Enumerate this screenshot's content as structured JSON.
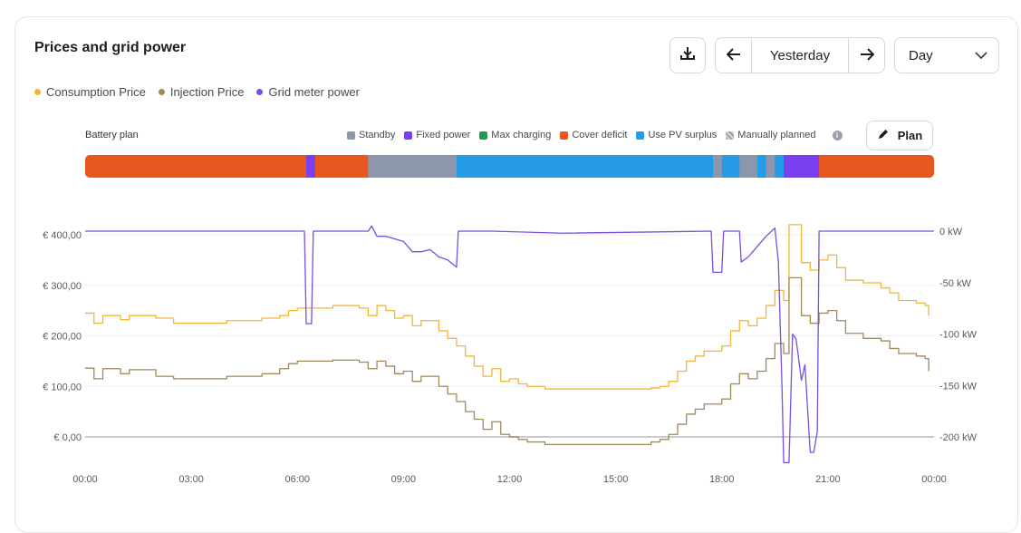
{
  "header": {
    "title": "Prices and grid power",
    "download_icon": "download-icon",
    "prev_icon": "arrow-left-icon",
    "next_icon": "arrow-right-icon",
    "period_label": "Yesterday",
    "range_select": "Day",
    "chevron_icon": "chevron-down-icon"
  },
  "legend": [
    {
      "label": "Consumption Price",
      "color": "#f2b636"
    },
    {
      "label": "Injection Price",
      "color": "#a1895a"
    },
    {
      "label": "Grid meter power",
      "color": "#7b4fe0"
    }
  ],
  "battery_plan": {
    "title": "Battery plan",
    "legend": [
      {
        "label": "Standby",
        "color": "#8d97ab"
      },
      {
        "label": "Fixed power",
        "color": "#7b3ff2"
      },
      {
        "label": "Max charging",
        "color": "#1e9e4a"
      },
      {
        "label": "Cover deficit",
        "color": "#e8581e"
      },
      {
        "label": "Use PV surplus",
        "color": "#269be6"
      },
      {
        "label": "Manually planned",
        "color": "hatch"
      }
    ],
    "info_icon": "info-icon",
    "plan_button": "Plan",
    "plan_icon": "pencil-icon",
    "segments": [
      {
        "start": 0.0,
        "end": 6.25,
        "mode": "Cover deficit"
      },
      {
        "start": 6.25,
        "end": 6.5,
        "mode": "Fixed power"
      },
      {
        "start": 6.5,
        "end": 8.0,
        "mode": "Cover deficit"
      },
      {
        "start": 8.0,
        "end": 10.5,
        "mode": "Standby"
      },
      {
        "start": 10.5,
        "end": 17.75,
        "mode": "Use PV surplus"
      },
      {
        "start": 17.75,
        "end": 18.0,
        "mode": "Standby"
      },
      {
        "start": 18.0,
        "end": 18.5,
        "mode": "Use PV surplus"
      },
      {
        "start": 18.5,
        "end": 19.0,
        "mode": "Standby"
      },
      {
        "start": 19.0,
        "end": 19.25,
        "mode": "Use PV surplus"
      },
      {
        "start": 19.25,
        "end": 19.5,
        "mode": "Standby"
      },
      {
        "start": 19.5,
        "end": 19.75,
        "mode": "Use PV surplus"
      },
      {
        "start": 19.75,
        "end": 20.75,
        "mode": "Fixed power"
      },
      {
        "start": 20.75,
        "end": 24.0,
        "mode": "Cover deficit"
      }
    ]
  },
  "chart_data": {
    "type": "line",
    "x_ticks": [
      "00:00",
      "03:00",
      "06:00",
      "09:00",
      "12:00",
      "15:00",
      "18:00",
      "21:00",
      "00:00"
    ],
    "y_left_ticks": [
      "€ 0,00",
      "€ 100,00",
      "€ 200,00",
      "€ 300,00",
      "€ 400,00"
    ],
    "y_right_ticks": [
      "0 kW",
      "-50 kW",
      "-100 kW",
      "-150 kW",
      "-200 kW"
    ],
    "y_left_range": [
      0,
      400
    ],
    "y_right_range": [
      -200,
      0
    ],
    "grid": true,
    "series": [
      {
        "name": "Consumption Price",
        "color": "#f2b636",
        "axis": "left",
        "points": [
          [
            0,
            245
          ],
          [
            0.25,
            225
          ],
          [
            0.5,
            240
          ],
          [
            1.0,
            232
          ],
          [
            1.25,
            240
          ],
          [
            2.0,
            235
          ],
          [
            2.5,
            225
          ],
          [
            4.0,
            230
          ],
          [
            5.0,
            235
          ],
          [
            5.5,
            240
          ],
          [
            5.75,
            250
          ],
          [
            6.0,
            255
          ],
          [
            7.0,
            260
          ],
          [
            7.75,
            255
          ],
          [
            8.0,
            240
          ],
          [
            8.25,
            260
          ],
          [
            8.5,
            250
          ],
          [
            8.75,
            235
          ],
          [
            9.0,
            240
          ],
          [
            9.25,
            220
          ],
          [
            9.5,
            230
          ],
          [
            10.0,
            210
          ],
          [
            10.25,
            195
          ],
          [
            10.5,
            180
          ],
          [
            10.75,
            160
          ],
          [
            11.0,
            140
          ],
          [
            11.25,
            120
          ],
          [
            11.5,
            135
          ],
          [
            11.75,
            110
          ],
          [
            12.0,
            115
          ],
          [
            12.25,
            105
          ],
          [
            12.5,
            100
          ],
          [
            13.0,
            95
          ],
          [
            15.0,
            95
          ],
          [
            16.0,
            97
          ],
          [
            16.25,
            100
          ],
          [
            16.5,
            110
          ],
          [
            16.75,
            130
          ],
          [
            17.0,
            150
          ],
          [
            17.25,
            160
          ],
          [
            17.5,
            170
          ],
          [
            18.0,
            180
          ],
          [
            18.25,
            210
          ],
          [
            18.5,
            230
          ],
          [
            18.75,
            220
          ],
          [
            19.0,
            235
          ],
          [
            19.25,
            260
          ],
          [
            19.5,
            290
          ],
          [
            19.75,
            270
          ],
          [
            19.9,
            420
          ],
          [
            20.0,
            420
          ],
          [
            20.25,
            345
          ],
          [
            20.5,
            330
          ],
          [
            20.75,
            350
          ],
          [
            21.0,
            360
          ],
          [
            21.25,
            335
          ],
          [
            21.5,
            310
          ],
          [
            22.0,
            305
          ],
          [
            22.5,
            295
          ],
          [
            22.75,
            285
          ],
          [
            23.0,
            270
          ],
          [
            23.5,
            265
          ],
          [
            23.75,
            260
          ],
          [
            23.85,
            240
          ]
        ]
      },
      {
        "name": "Injection Price",
        "color": "#a1895a",
        "axis": "left",
        "points": [
          [
            0,
            136
          ],
          [
            0.25,
            115
          ],
          [
            0.5,
            135
          ],
          [
            1.0,
            125
          ],
          [
            1.25,
            133
          ],
          [
            2.0,
            120
          ],
          [
            2.5,
            115
          ],
          [
            4.0,
            120
          ],
          [
            5.0,
            125
          ],
          [
            5.5,
            135
          ],
          [
            5.75,
            145
          ],
          [
            6.0,
            150
          ],
          [
            7.0,
            152
          ],
          [
            7.75,
            148
          ],
          [
            8.0,
            135
          ],
          [
            8.25,
            150
          ],
          [
            8.5,
            140
          ],
          [
            8.75,
            125
          ],
          [
            9.0,
            130
          ],
          [
            9.25,
            110
          ],
          [
            9.5,
            120
          ],
          [
            10.0,
            100
          ],
          [
            10.25,
            85
          ],
          [
            10.5,
            70
          ],
          [
            10.75,
            50
          ],
          [
            11.0,
            35
          ],
          [
            11.25,
            15
          ],
          [
            11.5,
            30
          ],
          [
            11.75,
            5
          ],
          [
            12.0,
            0
          ],
          [
            12.25,
            -5
          ],
          [
            12.5,
            -10
          ],
          [
            13.0,
            -15
          ],
          [
            15.0,
            -15
          ],
          [
            16.0,
            -10
          ],
          [
            16.25,
            -5
          ],
          [
            16.5,
            5
          ],
          [
            16.75,
            25
          ],
          [
            17.0,
            45
          ],
          [
            17.25,
            55
          ],
          [
            17.5,
            65
          ],
          [
            18.0,
            75
          ],
          [
            18.25,
            105
          ],
          [
            18.5,
            125
          ],
          [
            18.75,
            115
          ],
          [
            19.0,
            130
          ],
          [
            19.25,
            155
          ],
          [
            19.5,
            185
          ],
          [
            19.75,
            165
          ],
          [
            19.9,
            315
          ],
          [
            20.0,
            315
          ],
          [
            20.25,
            240
          ],
          [
            20.5,
            225
          ],
          [
            20.75,
            245
          ],
          [
            21.0,
            250
          ],
          [
            21.25,
            230
          ],
          [
            21.5,
            205
          ],
          [
            22.0,
            195
          ],
          [
            22.5,
            190
          ],
          [
            22.75,
            175
          ],
          [
            23.0,
            165
          ],
          [
            23.5,
            160
          ],
          [
            23.75,
            155
          ],
          [
            23.85,
            130
          ]
        ]
      },
      {
        "name": "Grid meter power",
        "color": "#7b4fe0",
        "axis": "right",
        "points": [
          [
            0,
            0
          ],
          [
            6.2,
            0
          ],
          [
            6.25,
            -90
          ],
          [
            6.4,
            -90
          ],
          [
            6.45,
            0
          ],
          [
            8.0,
            0
          ],
          [
            8.1,
            5
          ],
          [
            8.25,
            -5
          ],
          [
            8.5,
            -5
          ],
          [
            9.0,
            -10
          ],
          [
            9.25,
            -20
          ],
          [
            9.5,
            -20
          ],
          [
            9.75,
            -18
          ],
          [
            10.0,
            -25
          ],
          [
            10.25,
            -28
          ],
          [
            10.5,
            -35
          ],
          [
            10.55,
            0
          ],
          [
            11.5,
            0
          ],
          [
            13.5,
            -2
          ],
          [
            17.7,
            0
          ],
          [
            17.75,
            -40
          ],
          [
            18.0,
            -40
          ],
          [
            18.05,
            0
          ],
          [
            18.5,
            0
          ],
          [
            18.55,
            -30
          ],
          [
            18.75,
            -25
          ],
          [
            19.0,
            -15
          ],
          [
            19.25,
            -5
          ],
          [
            19.5,
            3
          ],
          [
            19.6,
            -30
          ],
          [
            19.7,
            -150
          ],
          [
            19.75,
            -225
          ],
          [
            19.9,
            -225
          ],
          [
            20.0,
            -100
          ],
          [
            20.1,
            -105
          ],
          [
            20.25,
            -145
          ],
          [
            20.35,
            -130
          ],
          [
            20.5,
            -215
          ],
          [
            20.6,
            -215
          ],
          [
            20.7,
            -195
          ],
          [
            20.75,
            0
          ],
          [
            24.0,
            0
          ]
        ]
      }
    ]
  }
}
